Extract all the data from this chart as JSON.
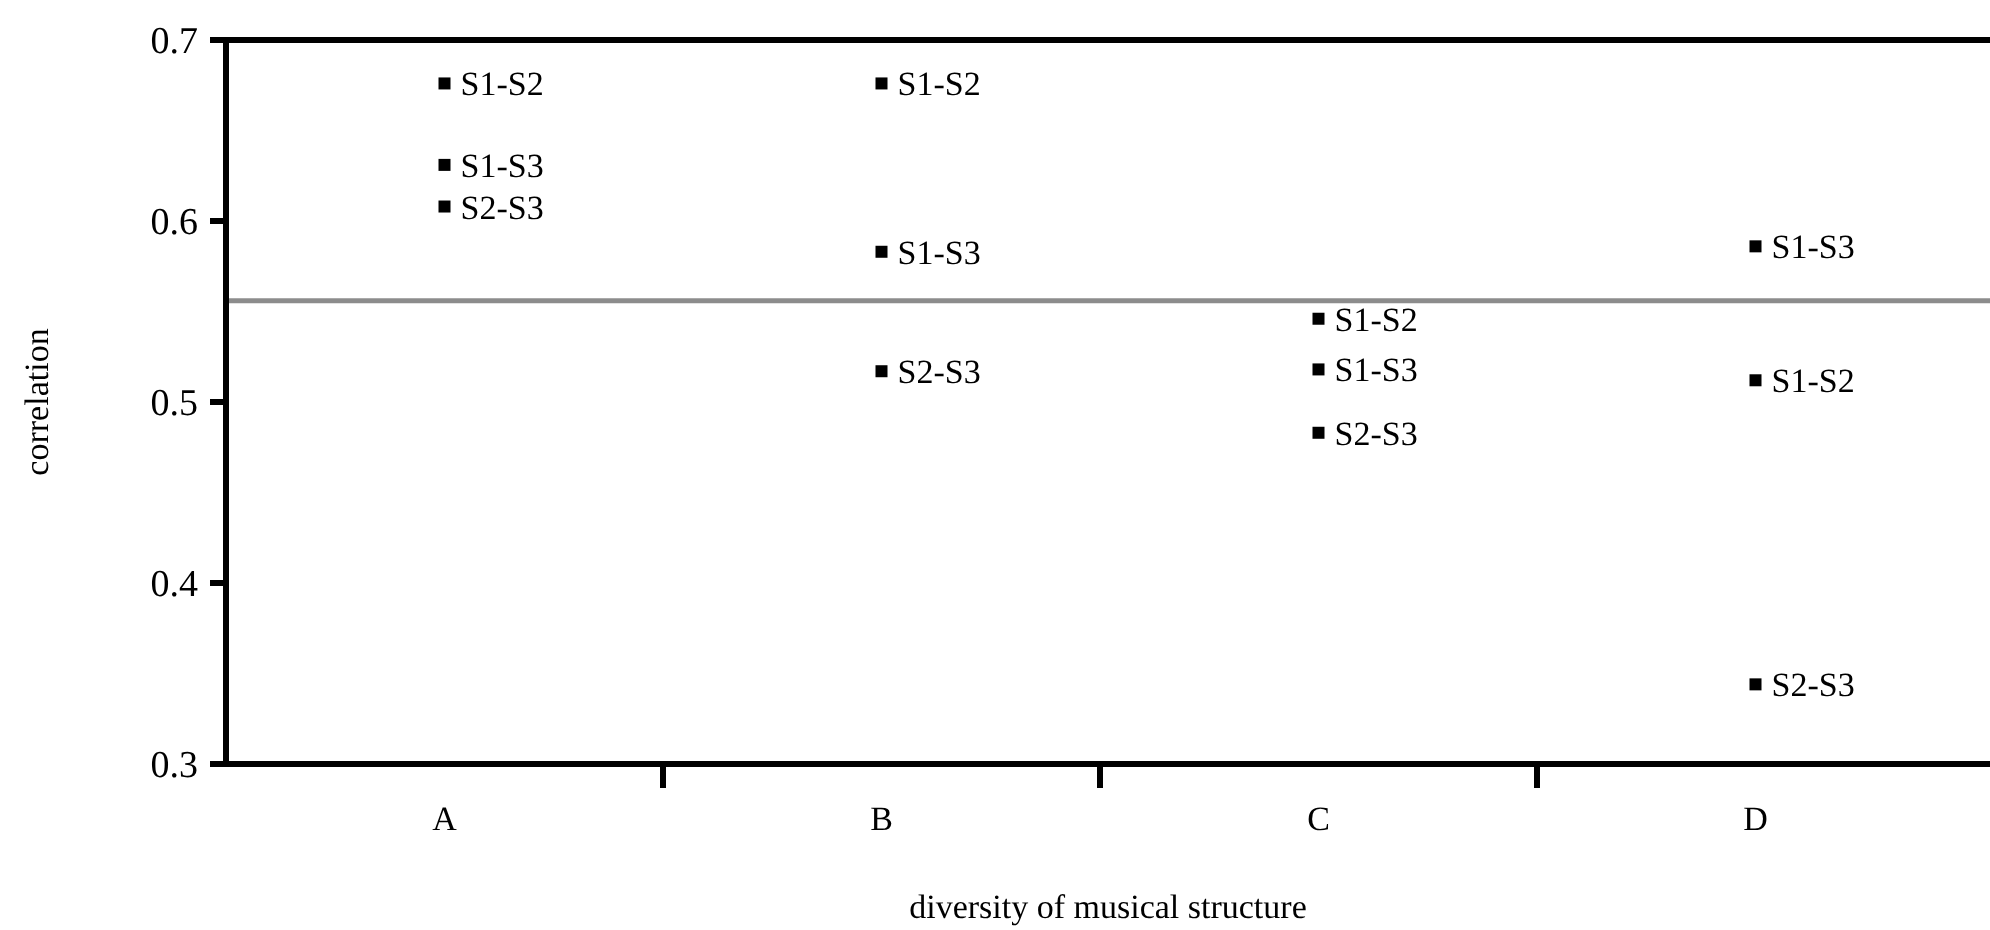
{
  "chart_data": {
    "type": "scatter",
    "xlabel": "diversity of musical structure",
    "ylabel": "correlation",
    "categories": [
      "A",
      "B",
      "C",
      "D"
    ],
    "series": [
      {
        "name": "S1-S2",
        "color": "#000000",
        "values": [
          0.676,
          0.676,
          0.546,
          0.512
        ]
      },
      {
        "name": "S1-S3",
        "color": "#000000",
        "values": [
          0.631,
          0.583,
          0.518,
          0.586
        ]
      },
      {
        "name": "S2-S3",
        "color": "#000000",
        "values": [
          0.608,
          0.517,
          0.483,
          0.344
        ]
      }
    ],
    "ylim": [
      0.3,
      0.7
    ],
    "yticks": [
      0.3,
      0.4,
      0.5,
      0.6,
      0.7
    ],
    "marker": "square",
    "grid": false,
    "ref_lines": [
      {
        "axis": "y",
        "value": 0.556,
        "color": "#8c8c8c"
      }
    ]
  }
}
